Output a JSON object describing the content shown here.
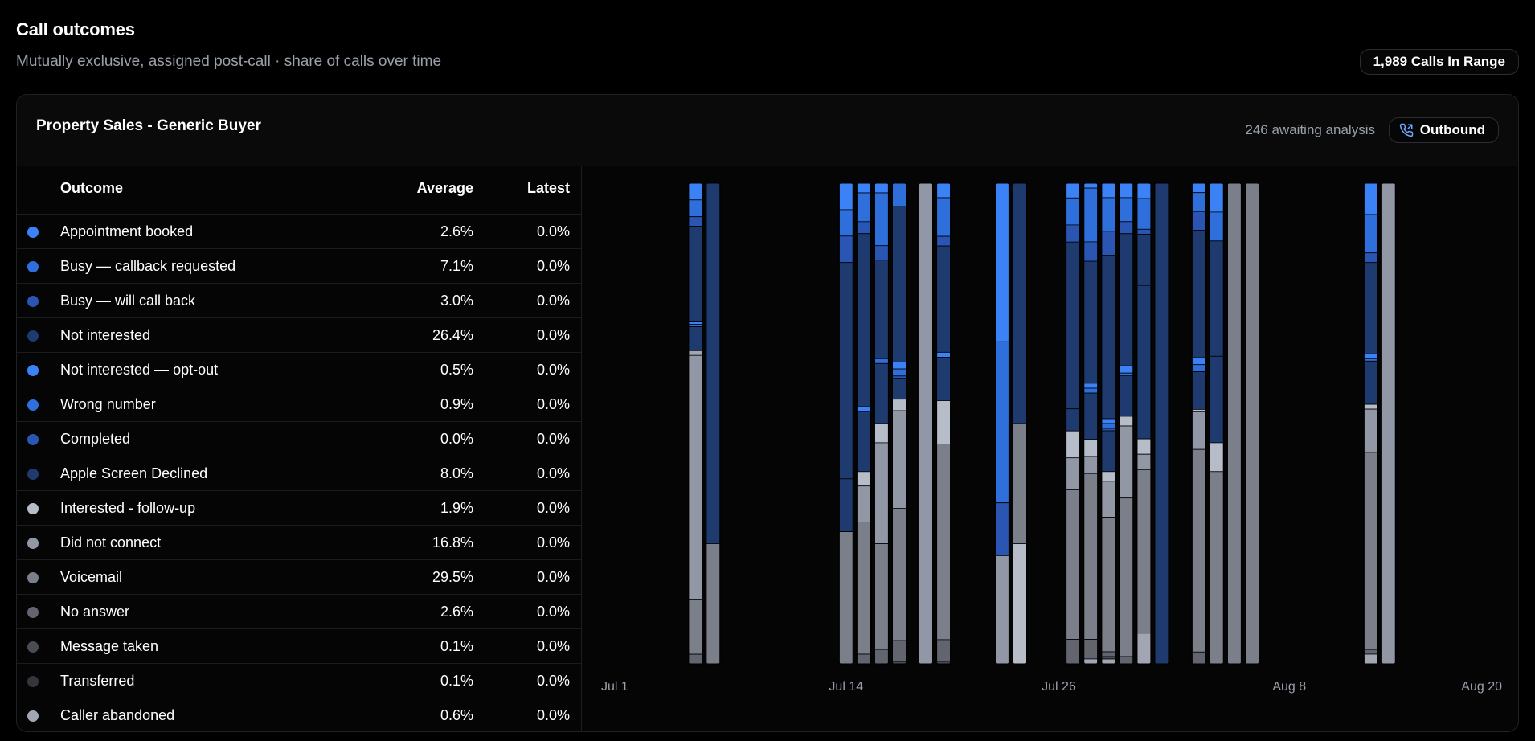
{
  "header": {
    "title": "Call outcomes",
    "subtitle": "Mutually exclusive, assigned post-call · share of calls over time",
    "range_badge": "1,989 Calls In Range"
  },
  "card": {
    "title": "Property Sales - Generic Buyer",
    "awaiting": "246 awaiting analysis",
    "direction_label": "Outbound",
    "direction_icon": "phone-outgoing-icon"
  },
  "table": {
    "headers": {
      "outcome": "Outcome",
      "average": "Average",
      "latest": "Latest"
    },
    "rows": [
      {
        "label": "Appointment booked",
        "average": "2.6%",
        "latest": "0.0%",
        "color": "#3b82f6"
      },
      {
        "label": "Busy — callback requested",
        "average": "7.1%",
        "latest": "0.0%",
        "color": "#2f6fdc"
      },
      {
        "label": "Busy — will call back",
        "average": "3.0%",
        "latest": "0.0%",
        "color": "#2a55b2"
      },
      {
        "label": "Not interested",
        "average": "26.4%",
        "latest": "0.0%",
        "color": "#1e3a6e"
      },
      {
        "label": "Not interested — opt-out",
        "average": "0.5%",
        "latest": "0.0%",
        "color": "#3b82f6"
      },
      {
        "label": "Wrong number",
        "average": "0.9%",
        "latest": "0.0%",
        "color": "#2f6fdc"
      },
      {
        "label": "Completed",
        "average": "0.0%",
        "latest": "0.0%",
        "color": "#2a55b2"
      },
      {
        "label": "Apple Screen Declined",
        "average": "8.0%",
        "latest": "0.0%",
        "color": "#1e3a6e"
      },
      {
        "label": "Interested - follow-up",
        "average": "1.9%",
        "latest": "0.0%",
        "color": "#b7bcc9"
      },
      {
        "label": "Did not connect",
        "average": "16.8%",
        "latest": "0.0%",
        "color": "#9297a6"
      },
      {
        "label": "Voicemail",
        "average": "29.5%",
        "latest": "0.0%",
        "color": "#7a7f8a"
      },
      {
        "label": "No answer",
        "average": "2.6%",
        "latest": "0.0%",
        "color": "#62656e"
      },
      {
        "label": "Message taken",
        "average": "0.1%",
        "latest": "0.0%",
        "color": "#4a4c53"
      },
      {
        "label": "Transferred",
        "average": "0.1%",
        "latest": "0.0%",
        "color": "#34363b"
      },
      {
        "label": "Caller abandoned",
        "average": "0.6%",
        "latest": "0.0%",
        "color": "#a2a6b3"
      }
    ]
  },
  "chart_data": {
    "type": "bar",
    "stacked": true,
    "normalized": true,
    "x_tick_labels": [
      "Jul 1",
      "Jul 14",
      "Jul 26",
      "Aug 8",
      "Aug 20"
    ],
    "x_tick_days": [
      0,
      13,
      25,
      38,
      50
    ],
    "x_domain_days": [
      0,
      50
    ],
    "ylim": [
      0,
      100
    ],
    "grid": false,
    "legend": "table-left",
    "series_colors": [
      "#3b82f6",
      "#2f6fdc",
      "#2a55b2",
      "#1e3a6e",
      "#3b82f6",
      "#2f6fdc",
      "#2a55b2",
      "#1e3a6e",
      "#b7bcc9",
      "#9297a6",
      "#7a7f8a",
      "#62656e",
      "#4a4c53",
      "#34363b",
      "#a2a6b3"
    ],
    "bars": [
      {
        "day": 4.5,
        "segments": [
          {
            "s": 0,
            "v": 3.5
          },
          {
            "s": 1,
            "v": 3.5
          },
          {
            "s": 2,
            "v": 2
          },
          {
            "s": 3,
            "v": 20
          },
          {
            "s": 4,
            "v": 0.5
          },
          {
            "s": 5,
            "v": 0.5
          },
          {
            "s": 7,
            "v": 5
          },
          {
            "s": 14,
            "v": 1
          },
          {
            "s": 9,
            "v": 51
          },
          {
            "s": 10,
            "v": 11.5
          },
          {
            "s": 11,
            "v": 2
          }
        ]
      },
      {
        "day": 5.5,
        "segments": [
          {
            "s": 3,
            "v": 75
          },
          {
            "s": 10,
            "v": 25
          }
        ]
      },
      {
        "day": 13.0,
        "segments": [
          {
            "s": 0,
            "v": 5.5
          },
          {
            "s": 1,
            "v": 5.5
          },
          {
            "s": 2,
            "v": 5.5
          },
          {
            "s": 3,
            "v": 45
          },
          {
            "s": 7,
            "v": 11
          },
          {
            "s": 10,
            "v": 27.5
          }
        ]
      },
      {
        "day": 14.0,
        "segments": [
          {
            "s": 0,
            "v": 2
          },
          {
            "s": 1,
            "v": 6
          },
          {
            "s": 2,
            "v": 2.5
          },
          {
            "s": 3,
            "v": 36
          },
          {
            "s": 4,
            "v": 1
          },
          {
            "s": 7,
            "v": 12.5
          },
          {
            "s": 8,
            "v": 3
          },
          {
            "s": 9,
            "v": 7.5
          },
          {
            "s": 10,
            "v": 27.5
          },
          {
            "s": 11,
            "v": 2
          }
        ]
      },
      {
        "day": 15.0,
        "segments": [
          {
            "s": 0,
            "v": 2
          },
          {
            "s": 1,
            "v": 11
          },
          {
            "s": 2,
            "v": 3
          },
          {
            "s": 3,
            "v": 20.5
          },
          {
            "s": 5,
            "v": 1
          },
          {
            "s": 7,
            "v": 12.5
          },
          {
            "s": 8,
            "v": 4
          },
          {
            "s": 9,
            "v": 21
          },
          {
            "s": 10,
            "v": 22
          },
          {
            "s": 11,
            "v": 3
          }
        ]
      },
      {
        "day": 16.0,
        "segments": [
          {
            "s": 0,
            "v": 0
          },
          {
            "s": 1,
            "v": 5
          },
          {
            "s": 2,
            "v": 0
          },
          {
            "s": 3,
            "v": 33.5
          },
          {
            "s": 4,
            "v": 1.5
          },
          {
            "s": 5,
            "v": 1.5
          },
          {
            "s": 2,
            "v": 0.5
          },
          {
            "s": 7,
            "v": 4.5
          },
          {
            "s": 8,
            "v": 2.5
          },
          {
            "s": 9,
            "v": 21
          },
          {
            "s": 10,
            "v": 28.5
          },
          {
            "s": 11,
            "v": 4.5
          },
          {
            "s": 12,
            "v": 0.5
          }
        ]
      },
      {
        "day": 17.5,
        "segments": [
          {
            "s": 9,
            "v": 100
          }
        ]
      },
      {
        "day": 18.5,
        "segments": [
          {
            "s": 0,
            "v": 3
          },
          {
            "s": 1,
            "v": 8
          },
          {
            "s": 2,
            "v": 2
          },
          {
            "s": 3,
            "v": 22
          },
          {
            "s": 4,
            "v": 1
          },
          {
            "s": 7,
            "v": 9
          },
          {
            "s": 8,
            "v": 9
          },
          {
            "s": 10,
            "v": 40.5
          },
          {
            "s": 11,
            "v": 4.5
          },
          {
            "s": 12,
            "v": 0.5
          }
        ]
      },
      {
        "day": 21.8,
        "segments": [
          {
            "s": 0,
            "v": 33
          },
          {
            "s": 1,
            "v": 33.5
          },
          {
            "s": 2,
            "v": 11
          },
          {
            "s": 9,
            "v": 22.5
          }
        ]
      },
      {
        "day": 22.8,
        "segments": [
          {
            "s": 3,
            "v": 50
          },
          {
            "s": 10,
            "v": 25
          },
          {
            "s": 8,
            "v": 25
          }
        ]
      },
      {
        "day": 25.8,
        "segments": [
          {
            "s": 0,
            "v": 3
          },
          {
            "s": 1,
            "v": 5.5
          },
          {
            "s": 2,
            "v": 3.5
          },
          {
            "s": 3,
            "v": 34
          },
          {
            "s": 7,
            "v": 4.5
          },
          {
            "s": 8,
            "v": 5.5
          },
          {
            "s": 9,
            "v": 6.5
          },
          {
            "s": 10,
            "v": 30.5
          },
          {
            "s": 11,
            "v": 5
          }
        ]
      },
      {
        "day": 26.8,
        "segments": [
          {
            "s": 0,
            "v": 1
          },
          {
            "s": 1,
            "v": 11
          },
          {
            "s": 2,
            "v": 4
          },
          {
            "s": 3,
            "v": 25
          },
          {
            "s": 4,
            "v": 1
          },
          {
            "s": 5,
            "v": 1
          },
          {
            "s": 7,
            "v": 9.5
          },
          {
            "s": 8,
            "v": 3.5
          },
          {
            "s": 9,
            "v": 3.5
          },
          {
            "s": 10,
            "v": 34
          },
          {
            "s": 11,
            "v": 4
          },
          {
            "s": 14,
            "v": 1
          }
        ]
      },
      {
        "day": 27.8,
        "segments": [
          {
            "s": 0,
            "v": 3
          },
          {
            "s": 1,
            "v": 7
          },
          {
            "s": 2,
            "v": 5
          },
          {
            "s": 3,
            "v": 34
          },
          {
            "s": 4,
            "v": 1
          },
          {
            "s": 5,
            "v": 1
          },
          {
            "s": 2,
            "v": 0.5
          },
          {
            "s": 7,
            "v": 8.5
          },
          {
            "s": 8,
            "v": 2
          },
          {
            "s": 9,
            "v": 7.5
          },
          {
            "s": 10,
            "v": 28
          },
          {
            "s": 11,
            "v": 1
          },
          {
            "s": 12,
            "v": 0.5
          },
          {
            "s": 14,
            "v": 1
          }
        ]
      },
      {
        "day": 28.8,
        "segments": [
          {
            "s": 0,
            "v": 3
          },
          {
            "s": 1,
            "v": 5
          },
          {
            "s": 2,
            "v": 2.5
          },
          {
            "s": 3,
            "v": 27.5
          },
          {
            "s": 4,
            "v": 1.5
          },
          {
            "s": 5,
            "v": 0.5
          },
          {
            "s": 7,
            "v": 8.5
          },
          {
            "s": 8,
            "v": 2
          },
          {
            "s": 9,
            "v": 15
          },
          {
            "s": 10,
            "v": 33
          },
          {
            "s": 11,
            "v": 1.5
          }
        ]
      },
      {
        "day": 29.8,
        "segments": [
          {
            "s": 0,
            "v": 3
          },
          {
            "s": 1,
            "v": 6
          },
          {
            "s": 2,
            "v": 1
          },
          {
            "s": 3,
            "v": 10
          },
          {
            "s": 4,
            "v": 0
          },
          {
            "s": 7,
            "v": 30
          },
          {
            "s": 8,
            "v": 3
          },
          {
            "s": 9,
            "v": 3
          },
          {
            "s": 10,
            "v": 32
          },
          {
            "s": 14,
            "v": 6
          }
        ]
      },
      {
        "day": 30.8,
        "segments": [
          {
            "s": 3,
            "v": 100
          }
        ]
      },
      {
        "day": 32.9,
        "segments": [
          {
            "s": 0,
            "v": 2
          },
          {
            "s": 1,
            "v": 4
          },
          {
            "s": 2,
            "v": 4
          },
          {
            "s": 3,
            "v": 27
          },
          {
            "s": 4,
            "v": 1.5
          },
          {
            "s": 5,
            "v": 1.5
          },
          {
            "s": 7,
            "v": 8
          },
          {
            "s": 8,
            "v": 0.5
          },
          {
            "s": 9,
            "v": 8
          },
          {
            "s": 10,
            "v": 43
          },
          {
            "s": 11,
            "v": 2.5
          }
        ]
      },
      {
        "day": 33.9,
        "segments": [
          {
            "s": 0,
            "v": 6
          },
          {
            "s": 1,
            "v": 6
          },
          {
            "s": 3,
            "v": 24
          },
          {
            "s": 7,
            "v": 18
          },
          {
            "s": 8,
            "v": 6
          },
          {
            "s": 10,
            "v": 40
          }
        ]
      },
      {
        "day": 34.9,
        "segments": [
          {
            "s": 10,
            "v": 100
          }
        ]
      },
      {
        "day": 35.9,
        "segments": [
          {
            "s": 10,
            "v": 100
          }
        ]
      },
      {
        "day": 42.6,
        "segments": [
          {
            "s": 0,
            "v": 6.5
          },
          {
            "s": 1,
            "v": 8
          },
          {
            "s": 2,
            "v": 2
          },
          {
            "s": 3,
            "v": 19
          },
          {
            "s": 4,
            "v": 1
          },
          {
            "s": 5,
            "v": 0.5
          },
          {
            "s": 7,
            "v": 9
          },
          {
            "s": 8,
            "v": 1
          },
          {
            "s": 9,
            "v": 9
          },
          {
            "s": 10,
            "v": 41
          },
          {
            "s": 11,
            "v": 1
          },
          {
            "s": 14,
            "v": 2
          }
        ]
      },
      {
        "day": 43.6,
        "segments": [
          {
            "s": 9,
            "v": 100
          }
        ]
      }
    ]
  }
}
